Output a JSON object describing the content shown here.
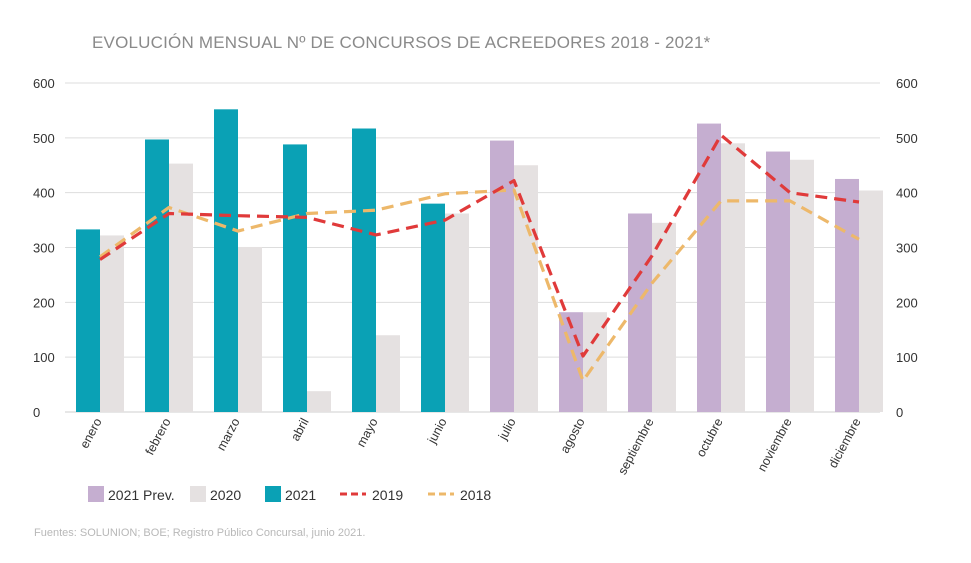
{
  "title": "EVOLUCIÓN MENSUAL Nº DE CONCURSOS DE ACREEDORES 2018 - 2021*",
  "source": "Fuentes: SOLUNION; BOE; Registro Público Concursal, junio 2021.",
  "colors": {
    "prev_2021": "#c5aed0",
    "y2020": "#e5e1e1",
    "y2021": "#0aa1b5",
    "y2019": "#e03a3a",
    "y2018": "#edb86a",
    "grid": "#dddddd",
    "axis_text": "#333333"
  },
  "chart_data": {
    "type": "bar",
    "title": "EVOLUCIÓN MENSUAL Nº DE CONCURSOS DE ACREEDORES 2018 - 2021*",
    "categories": [
      "enero",
      "febrero",
      "marzo",
      "abril",
      "mayo",
      "junio",
      "julio",
      "agosto",
      "septiembre",
      "octubre",
      "noviembre",
      "diciembre"
    ],
    "ylim": [
      0,
      600
    ],
    "yticks": [
      "0",
      "100",
      "200",
      "300",
      "400",
      "500",
      "600"
    ],
    "secondary_ylim": [
      0,
      600
    ],
    "grid": true,
    "legend_position": "bottom-left",
    "bar_series_2021": [
      {
        "name": "2021",
        "kind": "actual",
        "values": [
          333,
          497,
          552,
          488,
          517,
          380,
          null,
          null,
          null,
          null,
          null,
          null
        ]
      },
      {
        "name": "2021 Prev.",
        "kind": "forecast",
        "values": [
          null,
          null,
          null,
          null,
          null,
          null,
          495,
          182,
          362,
          526,
          475,
          425
        ]
      }
    ],
    "bar_series_2020": {
      "name": "2020",
      "values": [
        322,
        453,
        301,
        38,
        140,
        362,
        450,
        182,
        345,
        490,
        460,
        404
      ]
    },
    "line_series": [
      {
        "name": "2019",
        "style": "dashed",
        "values": [
          278,
          362,
          358,
          355,
          323,
          350,
          422,
          102,
          285,
          505,
          400,
          383
        ]
      },
      {
        "name": "2018",
        "style": "dashed",
        "values": [
          283,
          373,
          330,
          362,
          368,
          398,
          405,
          57,
          235,
          385,
          385,
          315
        ]
      }
    ],
    "legend": [
      {
        "label": "2021 Prev.",
        "marker": "box",
        "color_key": "prev_2021"
      },
      {
        "label": "2020",
        "marker": "box",
        "color_key": "y2020"
      },
      {
        "label": "2021",
        "marker": "box",
        "color_key": "y2021"
      },
      {
        "label": "2019",
        "marker": "dash",
        "color_key": "y2019"
      },
      {
        "label": "2018",
        "marker": "dash",
        "color_key": "y2018"
      }
    ]
  }
}
